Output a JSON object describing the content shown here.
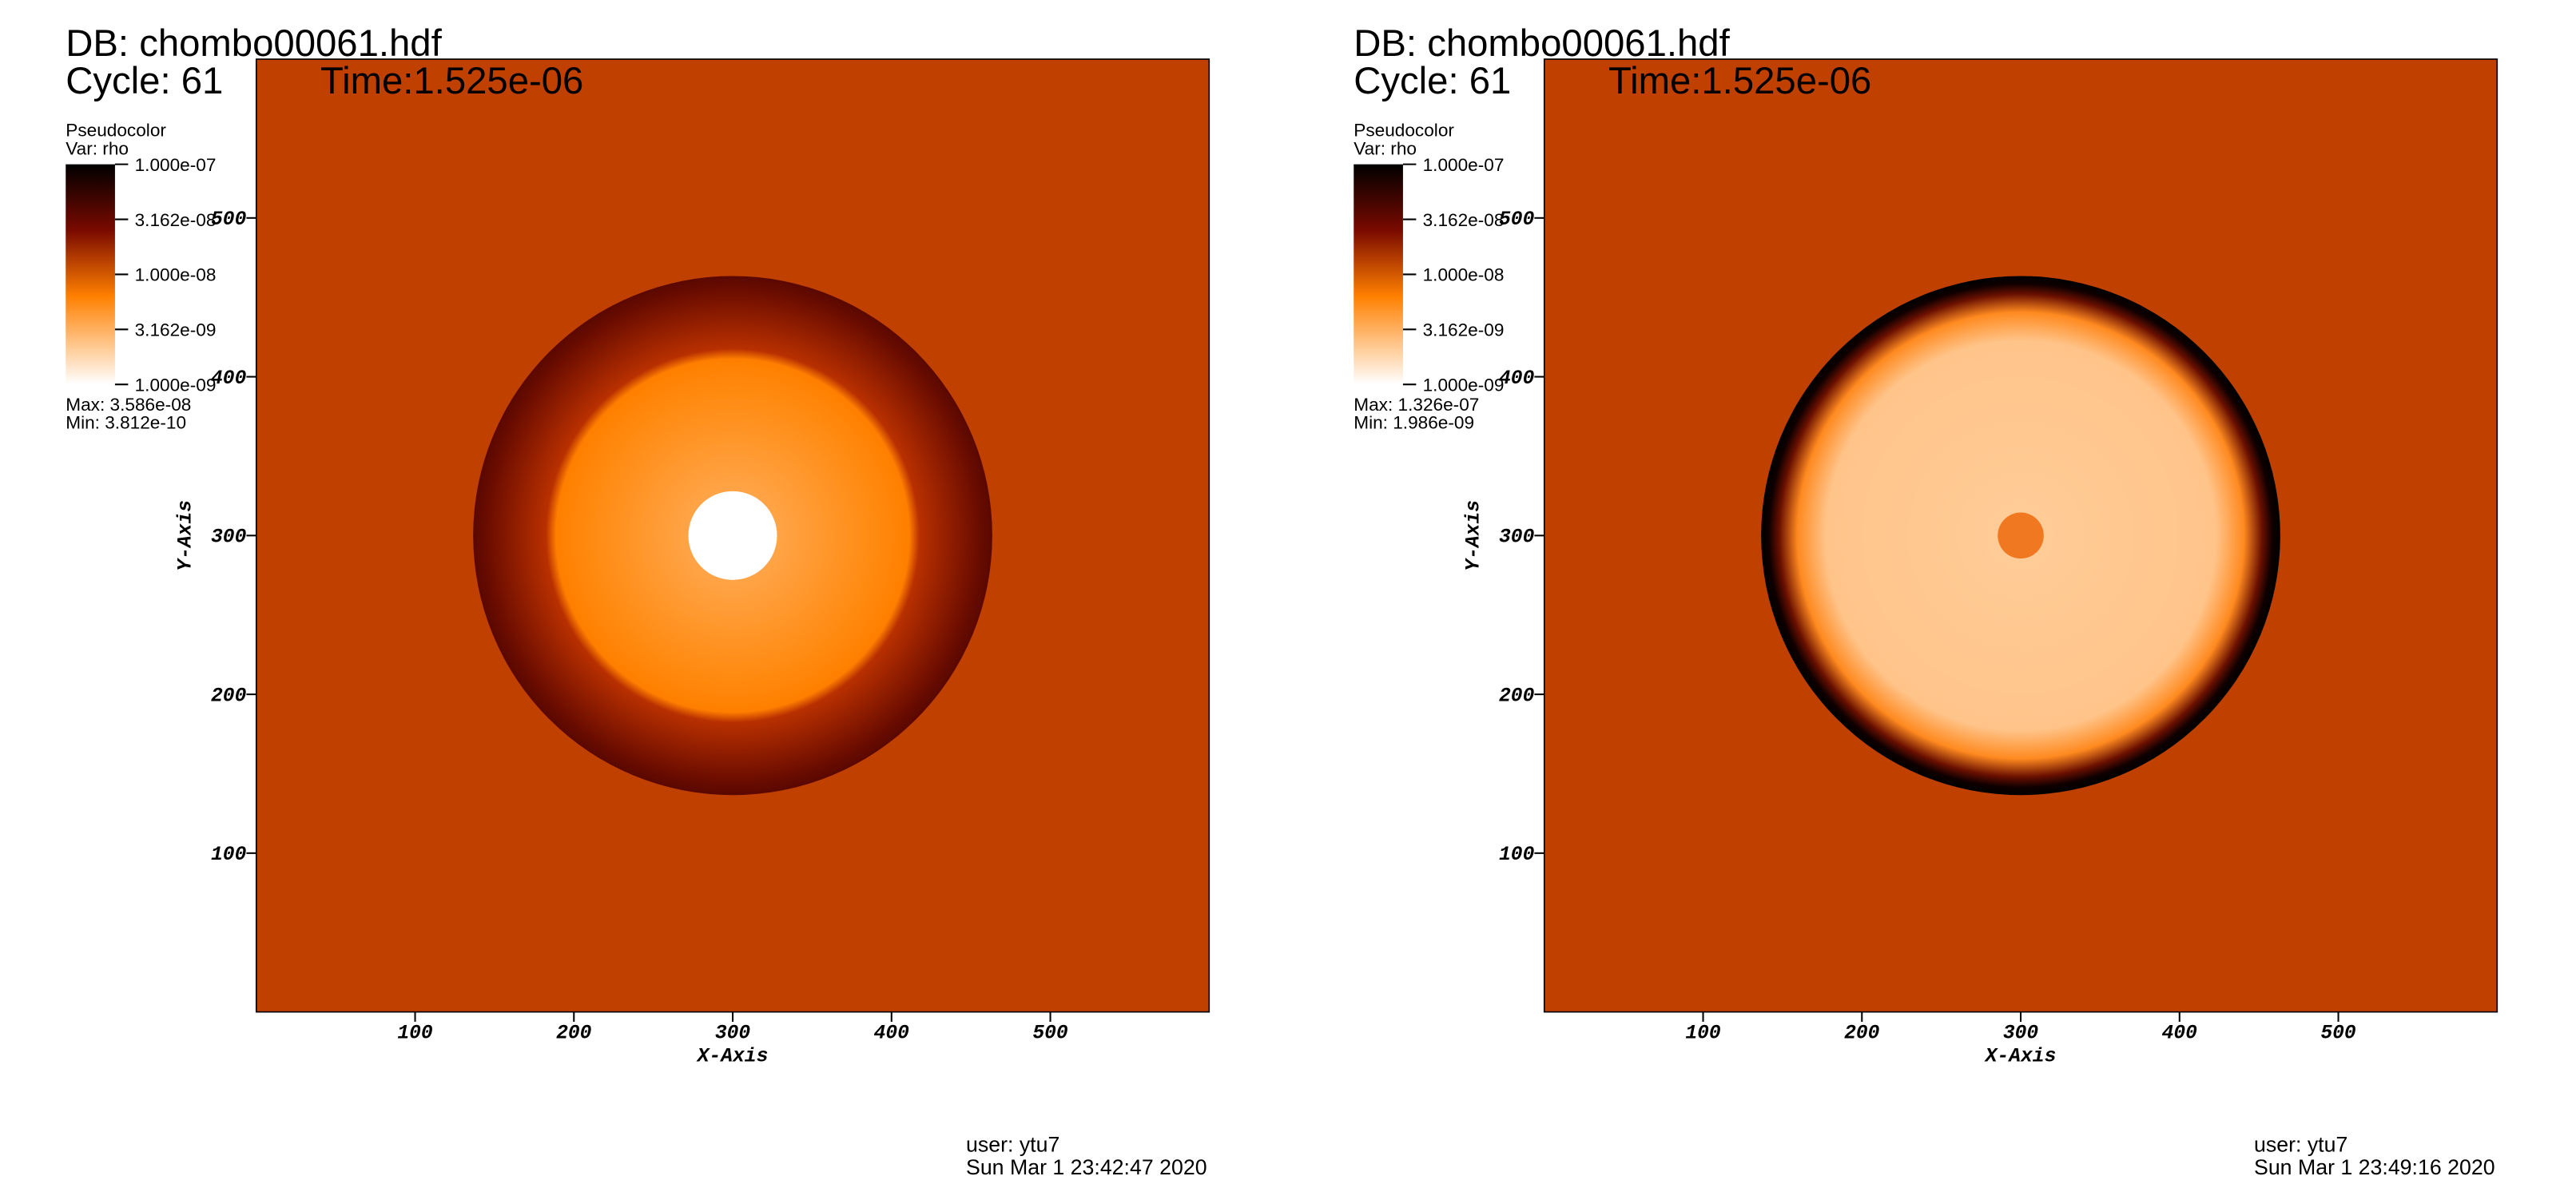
{
  "chart_data": [
    {
      "type": "pseudocolor",
      "title": "DB: chombo00061.hdf",
      "cycle": "Cycle: 61",
      "time": "Time:1.525e-06",
      "legend_title": "Pseudocolor",
      "variable": "Var: rho",
      "clim": [
        1e-09,
        1e-07
      ],
      "log_scale": true,
      "cticks": [
        {
          "value": 1e-07,
          "label": "1.000e-07"
        },
        {
          "value": 3.162e-08,
          "label": "3.162e-08"
        },
        {
          "value": 1e-08,
          "label": "1.000e-08"
        },
        {
          "value": 3.162e-09,
          "label": "3.162e-09"
        },
        {
          "value": 1e-09,
          "label": "1.000e-09"
        }
      ],
      "max": "Max:  3.586e-08",
      "min": "Min:  3.812e-10",
      "xlabel": "X-Axis",
      "ylabel": "Y-Axis",
      "xlim": [
        0,
        600
      ],
      "ylim": [
        0,
        600
      ],
      "xticks": [
        100,
        200,
        300,
        400,
        500
      ],
      "yticks": [
        100,
        200,
        300,
        400,
        500
      ],
      "user": "user: ytu7",
      "date": "Sun Mar  1 23:42:47 2020",
      "background": "#c04000"
    },
    {
      "type": "pseudocolor",
      "title": "DB: chombo00061.hdf",
      "cycle": "Cycle: 61",
      "time": "Time:1.525e-06",
      "legend_title": "Pseudocolor",
      "variable": "Var: rho",
      "clim": [
        1e-09,
        1e-07
      ],
      "log_scale": true,
      "cticks": [
        {
          "value": 1e-07,
          "label": "1.000e-07"
        },
        {
          "value": 3.162e-08,
          "label": "3.162e-08"
        },
        {
          "value": 1e-08,
          "label": "1.000e-08"
        },
        {
          "value": 3.162e-09,
          "label": "3.162e-09"
        },
        {
          "value": 1e-09,
          "label": "1.000e-09"
        }
      ],
      "max": "Max:  1.326e-07",
      "min": "Min:  1.986e-09",
      "xlabel": "X-Axis",
      "ylabel": "Y-Axis",
      "xlim": [
        0,
        600
      ],
      "ylim": [
        0,
        600
      ],
      "xticks": [
        100,
        200,
        300,
        400,
        500
      ],
      "yticks": [
        100,
        200,
        300,
        400,
        500
      ],
      "user": "user: ytu7",
      "date": "Sun Mar  1 23:49:16 2020",
      "background": "#c04000"
    }
  ]
}
